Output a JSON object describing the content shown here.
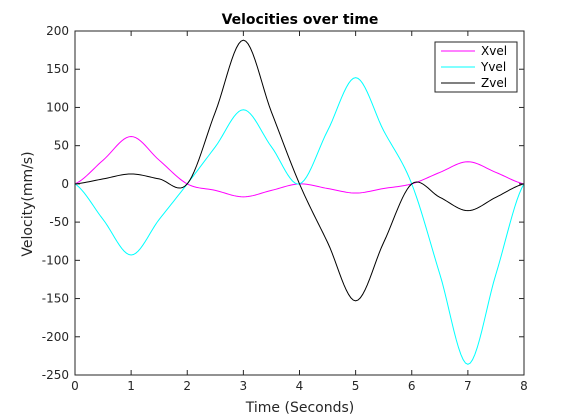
{
  "chart_data": {
    "type": "line",
    "title": "Velocities over time",
    "xlabel": "Time (Seconds)",
    "ylabel": "Velocity(mm/s)",
    "xlim": [
      0,
      8
    ],
    "ylim": [
      -250,
      200
    ],
    "xticks": [
      "0",
      "1",
      "2",
      "3",
      "4",
      "5",
      "6",
      "7",
      "8"
    ],
    "yticks": [
      "200",
      "150",
      "100",
      "50",
      "0",
      "-50",
      "-100",
      "-150",
      "-200",
      "-250"
    ],
    "grid": false,
    "legend_position": "top-right",
    "x": [
      0,
      0.5,
      1,
      1.5,
      2,
      2.5,
      3,
      3.5,
      4,
      4.5,
      5,
      5.5,
      6,
      6.5,
      7,
      7.5,
      8
    ],
    "series": [
      {
        "name": "Xvel",
        "color": "#ff00ff",
        "values": [
          0,
          31,
          62,
          31,
          0,
          -8.5,
          -17,
          -8.5,
          0,
          -6,
          -12,
          -6,
          0,
          15,
          29,
          15,
          0
        ]
      },
      {
        "name": "Yvel",
        "color": "#00ffff",
        "values": [
          0,
          -46.5,
          -93,
          -46.5,
          0,
          48.5,
          97,
          48.5,
          0,
          69.5,
          139,
          69.5,
          0,
          -118,
          -236,
          -118,
          0
        ]
      },
      {
        "name": "Zvel",
        "color": "#000000",
        "values": [
          0,
          6.5,
          13,
          6.5,
          0,
          94,
          188,
          94,
          0,
          -76.5,
          -153,
          -76.5,
          0,
          -17.5,
          -35,
          -17.5,
          0
        ]
      }
    ]
  }
}
